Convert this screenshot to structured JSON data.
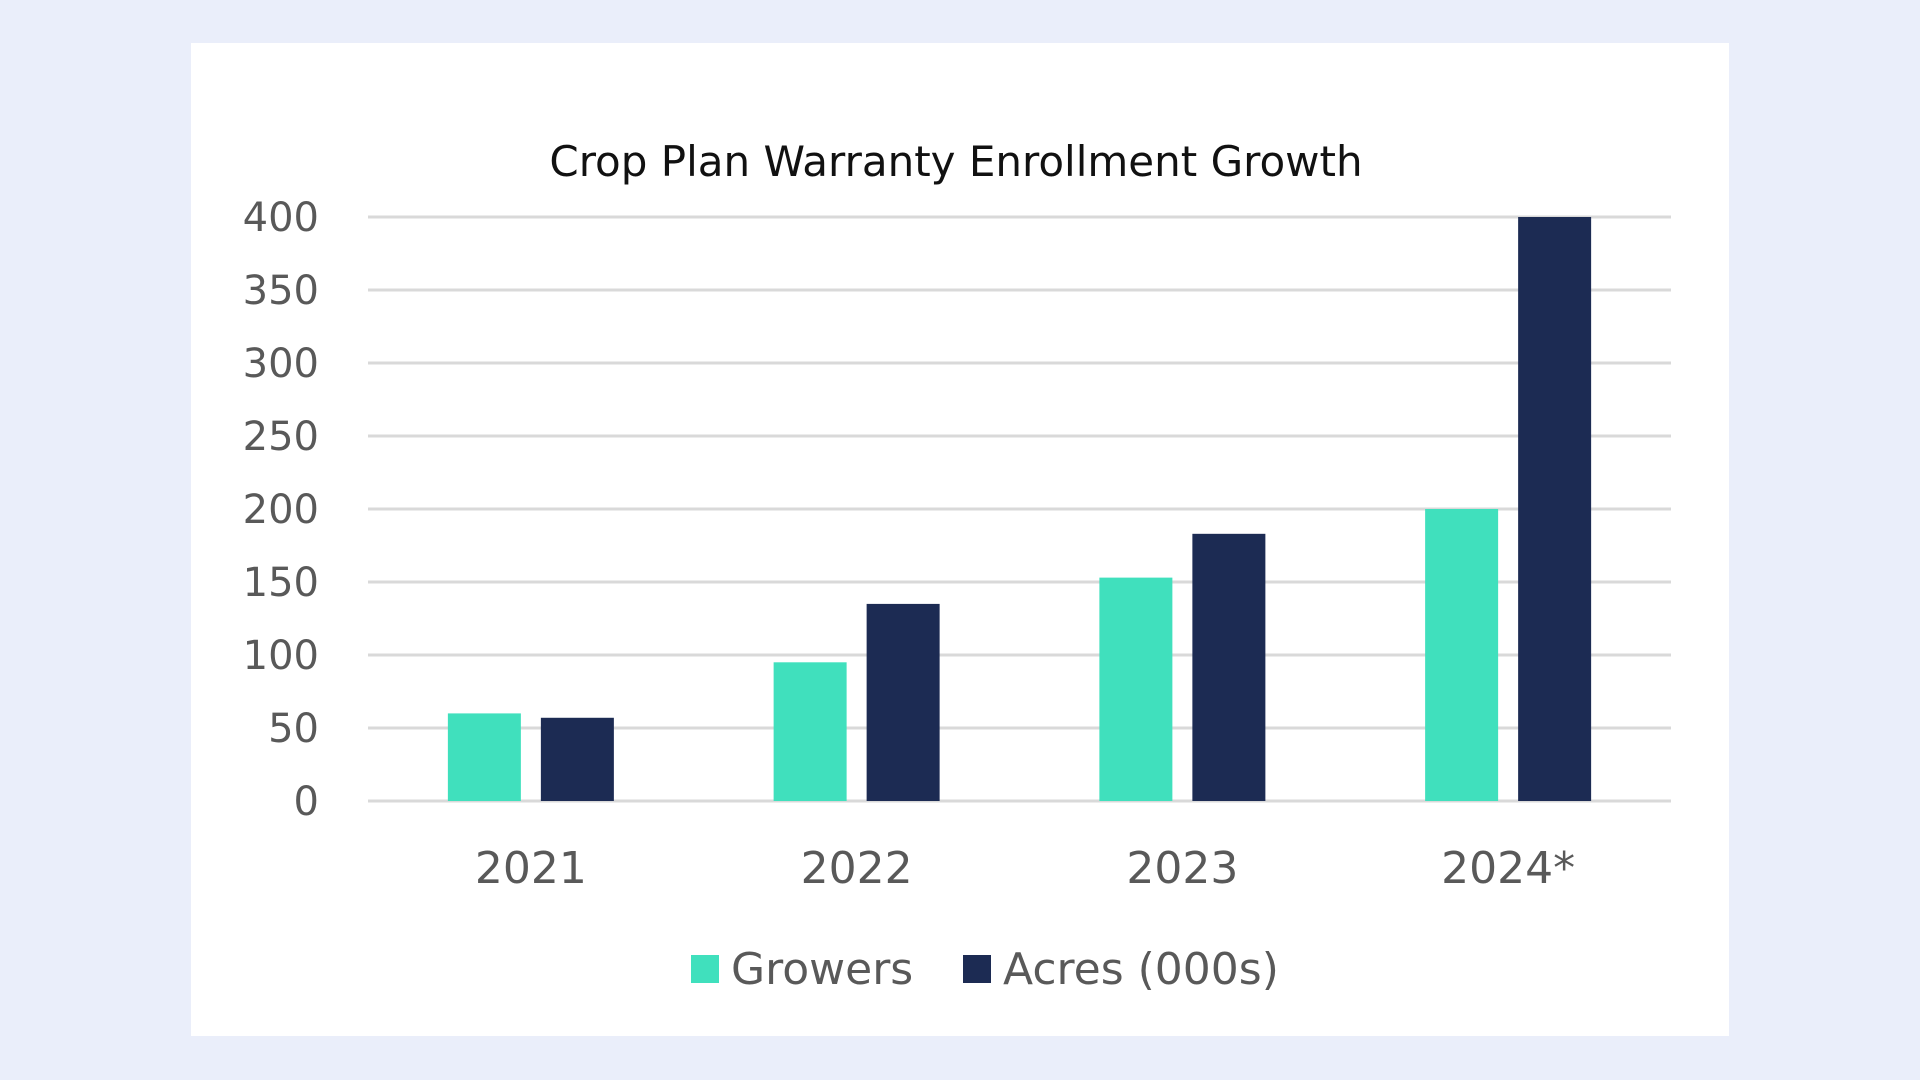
{
  "colors": {
    "page_background": "#eaeefa",
    "card_background": "#ffffff",
    "growers": "#40e0bd",
    "acres": "#1c2b53",
    "grid": "#d9d9d9",
    "text": "#595959",
    "title": "#111111"
  },
  "chart_data": {
    "type": "bar",
    "title": "Crop Plan Warranty Enrollment Growth",
    "categories": [
      "2021",
      "2022",
      "2023",
      "2024*"
    ],
    "series": [
      {
        "name": "Growers",
        "values": [
          60,
          95,
          153,
          200
        ]
      },
      {
        "name": "Acres (000s)",
        "values": [
          57,
          135,
          183,
          400
        ]
      }
    ],
    "ylim": [
      0,
      400
    ],
    "yticks": [
      "0",
      "50",
      "100",
      "150",
      "200",
      "250",
      "300",
      "350",
      "400"
    ],
    "grid": true,
    "legend_position": "bottom"
  }
}
